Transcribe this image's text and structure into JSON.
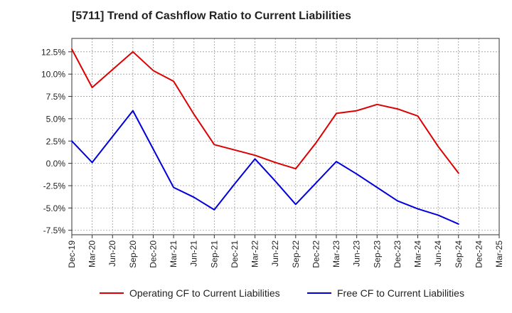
{
  "chart_data": {
    "type": "line",
    "title": "[5711]  Trend of Cashflow Ratio to Current Liabilities",
    "xlabel": "",
    "ylabel": "",
    "categories": [
      "Dec-19",
      "Mar-20",
      "Jun-20",
      "Sep-20",
      "Dec-20",
      "Mar-21",
      "Jun-21",
      "Sep-21",
      "Dec-21",
      "Mar-22",
      "Jun-22",
      "Sep-22",
      "Dec-22",
      "Mar-23",
      "Jun-23",
      "Sep-23",
      "Dec-23",
      "Mar-24",
      "Jun-24",
      "Sep-24",
      "Dec-24",
      "Mar-25"
    ],
    "x_tick_labels": [
      "Dec-19",
      "Mar-20",
      "Jun-20",
      "Sep-20",
      "Dec-20",
      "Mar-21",
      "Jun-21",
      "Sep-21",
      "Dec-21",
      "Mar-22",
      "Jun-22",
      "Sep-22",
      "Dec-22",
      "Mar-23",
      "Jun-23",
      "Sep-23",
      "Dec-23",
      "Mar-24",
      "Jun-24",
      "Sep-24",
      "Dec-24",
      "Mar-25"
    ],
    "y_ticks": [
      12.5,
      10.0,
      7.5,
      5.0,
      2.5,
      0.0,
      -2.5,
      -5.0,
      -7.5
    ],
    "y_tick_labels": [
      "12.5%",
      "10.0%",
      "7.5%",
      "5.0%",
      "2.5%",
      "0.0%",
      "-2.5%",
      "-5.0%",
      "-7.5%"
    ],
    "ylim": [
      -8.0,
      14.0
    ],
    "grid": true,
    "legend_position": "bottom",
    "series": [
      {
        "name": "Operating CF to Current Liabilities",
        "color": "#dd0000",
        "values": [
          12.8,
          8.5,
          10.5,
          12.5,
          10.4,
          9.2,
          5.5,
          2.1,
          1.5,
          0.9,
          0.1,
          -0.6,
          2.3,
          5.6,
          5.9,
          6.6,
          6.1,
          5.3,
          1.9,
          -1.1,
          null,
          null
        ]
      },
      {
        "name": "Free CF to Current Liabilities",
        "color": "#0000dd",
        "values": [
          2.5,
          0.1,
          3.0,
          5.9,
          1.6,
          -2.7,
          -3.8,
          -5.2,
          -2.3,
          0.5,
          -2.0,
          -4.6,
          -2.2,
          0.2,
          -1.2,
          -2.7,
          -4.2,
          -5.1,
          -5.8,
          -6.8,
          null,
          null
        ]
      }
    ]
  }
}
